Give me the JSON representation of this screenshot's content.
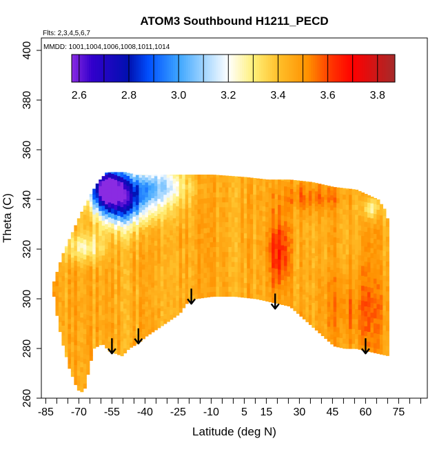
{
  "chart_data": {
    "type": "heatmap",
    "title": "ATOM3 Southbound H1211_PECD",
    "subtitle_flights": "Flts: 2,3,4,5,6,7",
    "subtitle_dates": "MMDD: 1001,1004,1006,1008,1011,1014",
    "xlabel": "Latitude (deg N)",
    "ylabel": "Theta (C)",
    "xlim": [
      -87,
      88
    ],
    "ylim": [
      260,
      405
    ],
    "x_tick_labels": [
      "-85",
      "-70",
      "-55",
      "-40",
      "-25",
      "-10",
      "5",
      "15",
      "30",
      "45",
      "60",
      "75"
    ],
    "x_tick_values": [
      -85,
      -70,
      -55,
      -40,
      -25,
      -10,
      5,
      15,
      30,
      45,
      60,
      75
    ],
    "x_minor_step": 5,
    "y_ticks": [
      260,
      280,
      300,
      320,
      340,
      360,
      380,
      400
    ],
    "colorbar": {
      "min": 2.57,
      "max": 3.87,
      "tick_values": [
        2.6,
        2.8,
        3.0,
        3.2,
        3.4,
        3.6,
        3.8
      ],
      "tick_labels": [
        "2.6",
        "2.8",
        "3.0",
        "3.2",
        "3.4",
        "3.6",
        "3.8"
      ],
      "stops": [
        {
          "v": 2.57,
          "color": "#8a2be2"
        },
        {
          "v": 2.65,
          "color": "#3300cc"
        },
        {
          "v": 2.8,
          "color": "#0010b0"
        },
        {
          "v": 2.88,
          "color": "#0050ff"
        },
        {
          "v": 3.0,
          "color": "#3da5ff"
        },
        {
          "v": 3.1,
          "color": "#9fd4ff"
        },
        {
          "v": 3.2,
          "color": "#ffffff"
        },
        {
          "v": 3.3,
          "color": "#fff07a"
        },
        {
          "v": 3.4,
          "color": "#ffc02a"
        },
        {
          "v": 3.52,
          "color": "#ff9000"
        },
        {
          "v": 3.62,
          "color": "#ff3000"
        },
        {
          "v": 3.7,
          "color": "#ff0000"
        },
        {
          "v": 3.87,
          "color": "#a52a2a"
        }
      ]
    },
    "tropopause_arrows": [
      {
        "lat": -55,
        "theta": 278
      },
      {
        "lat": -43,
        "theta": 282
      },
      {
        "lat": -19,
        "theta": 298
      },
      {
        "lat": 19,
        "theta": 296
      },
      {
        "lat": 60,
        "theta": 278
      }
    ],
    "data_envelope": {
      "lower": [
        [
          -82,
          301
        ],
        [
          -80,
          290
        ],
        [
          -78,
          282
        ],
        [
          -75,
          272
        ],
        [
          -72,
          265
        ],
        [
          -70,
          262
        ],
        [
          -68,
          264
        ],
        [
          -66,
          272
        ],
        [
          -64,
          280
        ],
        [
          -60,
          282
        ],
        [
          -57,
          279
        ],
        [
          -54,
          278
        ],
        [
          -51,
          277
        ],
        [
          -48,
          280
        ],
        [
          -44,
          282
        ],
        [
          -40,
          285
        ],
        [
          -35,
          288
        ],
        [
          -30,
          291
        ],
        [
          -25,
          294
        ],
        [
          -22,
          298
        ],
        [
          -18,
          300
        ],
        [
          -10,
          301
        ],
        [
          0,
          301
        ],
        [
          10,
          300
        ],
        [
          15,
          299
        ],
        [
          20,
          298
        ],
        [
          25,
          297
        ],
        [
          30,
          293
        ],
        [
          35,
          289
        ],
        [
          40,
          285
        ],
        [
          45,
          281
        ],
        [
          50,
          280
        ],
        [
          55,
          280
        ],
        [
          60,
          279
        ],
        [
          65,
          278
        ],
        [
          70,
          277
        ]
      ],
      "upper": [
        [
          -82,
          307
        ],
        [
          -78,
          318
        ],
        [
          -74,
          326
        ],
        [
          -70,
          334
        ],
        [
          -66,
          341
        ],
        [
          -62,
          347
        ],
        [
          -58,
          351
        ],
        [
          -54,
          351
        ],
        [
          -50,
          351
        ],
        [
          -45,
          350
        ],
        [
          -30,
          350
        ],
        [
          -10,
          350
        ],
        [
          5,
          349
        ],
        [
          15,
          348
        ],
        [
          25,
          348
        ],
        [
          35,
          347
        ],
        [
          45,
          345
        ],
        [
          55,
          344
        ],
        [
          60,
          342
        ],
        [
          65,
          340
        ],
        [
          68,
          336
        ],
        [
          70,
          330
        ],
        [
          71,
          310
        ],
        [
          72,
          300
        ]
      ]
    },
    "fields": [
      {
        "kind": "base",
        "value": 3.45
      },
      {
        "kind": "blob",
        "lat": -58,
        "theta": 344,
        "rx": 7,
        "ry": 8,
        "value": -0.75
      },
      {
        "kind": "blob",
        "lat": -52,
        "theta": 338,
        "rx": 10,
        "ry": 10,
        "value": -0.45
      },
      {
        "kind": "blob",
        "lat": -45,
        "theta": 342,
        "rx": 16,
        "ry": 10,
        "value": -0.32
      },
      {
        "kind": "blob",
        "lat": -33,
        "theta": 345,
        "rx": 12,
        "ry": 7,
        "value": -0.18
      },
      {
        "kind": "blob",
        "lat": -68,
        "theta": 320,
        "rx": 9,
        "ry": 6,
        "value": -0.2
      },
      {
        "kind": "blob",
        "lat": 20,
        "theta": 318,
        "rx": 5,
        "ry": 14,
        "value": 0.2
      },
      {
        "kind": "blob",
        "lat": 35,
        "theta": 340,
        "rx": 15,
        "ry": 6,
        "value": 0.1
      },
      {
        "kind": "blob",
        "lat": 55,
        "theta": 295,
        "rx": 15,
        "ry": 15,
        "value": 0.1
      },
      {
        "kind": "blob",
        "lat": 62,
        "theta": 336,
        "rx": 4,
        "ry": 5,
        "value": -0.22
      }
    ]
  }
}
